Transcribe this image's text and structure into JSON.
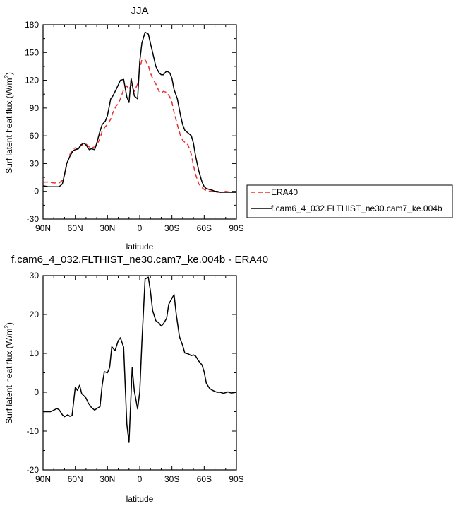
{
  "chart_data": [
    {
      "type": "line",
      "title": "JJA",
      "xlabel": "latitude",
      "ylabel": "Surf latent heat flux (W/m",
      "ylabel_sup": "2",
      "ylabel_close": ")",
      "xlim": [
        90,
        -90
      ],
      "ylim": [
        -30,
        180
      ],
      "x_ticks": [
        90,
        60,
        30,
        0,
        -30,
        -60,
        -90
      ],
      "x_tick_labels": [
        "90N",
        "60N",
        "30N",
        "0",
        "30S",
        "60S",
        "90S"
      ],
      "y_ticks": [
        -30,
        0,
        30,
        60,
        90,
        120,
        150,
        180
      ],
      "y_tick_labels": [
        "-30",
        "0",
        "30",
        "60",
        "90",
        "120",
        "150",
        "180"
      ],
      "legend": "outside-right",
      "series": [
        {
          "name": "ERA40",
          "style": "dashed",
          "color": "#e8302a",
          "x": [
            90,
            85,
            80,
            75,
            72,
            70,
            68,
            65,
            62,
            60,
            57,
            55,
            52,
            50,
            47,
            45,
            42,
            40,
            37,
            35,
            32,
            30,
            27,
            25,
            22,
            20,
            18,
            15,
            12,
            10,
            8,
            5,
            2,
            0,
            -2,
            -5,
            -8,
            -10,
            -12,
            -15,
            -18,
            -20,
            -22,
            -25,
            -28,
            -30,
            -32,
            -35,
            -38,
            -40,
            -42,
            -45,
            -48,
            -50,
            -52,
            -55,
            -58,
            -60,
            -62,
            -65,
            -68,
            -70,
            -72,
            -75,
            -78,
            -80,
            -85,
            -90
          ],
          "y": [
            10,
            10,
            9,
            9,
            12,
            18,
            28,
            40,
            46,
            47,
            45,
            49,
            51,
            51,
            48,
            47,
            48,
            50,
            57,
            65,
            70,
            72,
            78,
            85,
            92,
            95,
            100,
            110,
            114,
            110,
            115,
            108,
            116,
            132,
            142,
            142,
            136,
            128,
            122,
            116,
            108,
            106,
            108,
            107,
            102,
            96,
            85,
            72,
            60,
            55,
            53,
            50,
            40,
            28,
            18,
            8,
            4,
            2,
            1,
            0,
            0,
            -1,
            -1,
            -1,
            -1,
            0,
            -1,
            -1
          ]
        },
        {
          "name": "f.cam6_4_032.FLTHIST_ne30.cam7_ke.004b",
          "style": "solid",
          "color": "#000000",
          "x": [
            90,
            85,
            80,
            75,
            72,
            70,
            68,
            65,
            62,
            60,
            57,
            55,
            52,
            50,
            47,
            45,
            42,
            40,
            37,
            35,
            32,
            30,
            27,
            25,
            22,
            20,
            18,
            15,
            12,
            10,
            8,
            5,
            2,
            0,
            -2,
            -5,
            -8,
            -10,
            -12,
            -15,
            -18,
            -20,
            -22,
            -25,
            -28,
            -30,
            -32,
            -35,
            -38,
            -40,
            -42,
            -45,
            -48,
            -50,
            -52,
            -55,
            -58,
            -60,
            -62,
            -65,
            -68,
            -70,
            -72,
            -75,
            -78,
            -80,
            -85,
            -90
          ],
          "y": [
            6,
            5,
            5,
            5,
            8,
            18,
            30,
            38,
            44,
            45,
            46,
            50,
            52,
            50,
            45,
            46,
            45,
            52,
            65,
            72,
            76,
            82,
            100,
            103,
            110,
            115,
            120,
            121,
            102,
            96,
            122,
            103,
            100,
            140,
            160,
            172,
            170,
            160,
            150,
            135,
            128,
            126,
            126,
            130,
            128,
            122,
            110,
            100,
            82,
            72,
            66,
            63,
            60,
            52,
            38,
            22,
            10,
            5,
            3,
            2,
            1,
            0,
            0,
            -1,
            -1,
            -1,
            -1,
            -1
          ]
        }
      ]
    },
    {
      "type": "line",
      "title": "f.cam6_4_032.FLTHIST_ne30.cam7_ke.004b - ERA40",
      "xlabel": "latitude",
      "ylabel": "Surf latent heat flux (W/m",
      "ylabel_sup": "2",
      "ylabel_close": ")",
      "xlim": [
        90,
        -90
      ],
      "ylim": [
        -20,
        30
      ],
      "x_ticks": [
        90,
        60,
        30,
        0,
        -30,
        -60,
        -90
      ],
      "x_tick_labels": [
        "90N",
        "60N",
        "30N",
        "0",
        "30S",
        "60S",
        "90S"
      ],
      "y_ticks": [
        -20,
        -10,
        0,
        10,
        20,
        30
      ],
      "y_tick_labels": [
        "-20",
        "-10",
        "0",
        "10",
        "20",
        "30"
      ],
      "series": [
        {
          "style": "solid",
          "color": "#000000",
          "x": [
            90,
            85,
            83,
            80,
            77,
            75,
            72,
            70,
            67,
            65,
            63,
            60,
            58,
            56,
            54,
            52,
            50,
            48,
            45,
            42,
            40,
            37,
            35,
            33,
            30,
            28,
            26,
            23,
            20,
            18,
            15,
            12,
            10,
            7,
            5,
            2,
            0,
            -2,
            -5,
            -8,
            -10,
            -12,
            -15,
            -18,
            -20,
            -22,
            -25,
            -27,
            -30,
            -32,
            -34,
            -37,
            -40,
            -42,
            -45,
            -48,
            -50,
            -52,
            -55,
            -58,
            -60,
            -62,
            -65,
            -67,
            -70,
            -72,
            -75,
            -78,
            -80,
            -82,
            -85,
            -88,
            -90
          ],
          "y": [
            -5,
            -5,
            -5,
            -4.6,
            -4.2,
            -4.5,
            -5.8,
            -6.3,
            -5.8,
            -6.2,
            -6,
            1.3,
            0.5,
            1.8,
            -0.4,
            -0.9,
            -1.5,
            -2.7,
            -3.9,
            -4.6,
            -4.2,
            -3.7,
            1.7,
            5.3,
            5.0,
            6.4,
            11.7,
            10.7,
            13.3,
            14.0,
            11.6,
            -8.2,
            -12.9,
            6.3,
            0.3,
            -4.3,
            0.0,
            12.6,
            29.1,
            29.6,
            26.0,
            21.0,
            18.4,
            17.8,
            17.0,
            17.6,
            19.0,
            22.6,
            24.2,
            25.1,
            20.0,
            14.3,
            12.0,
            10.1,
            9.9,
            9.4,
            9.6,
            9.3,
            8.0,
            7.0,
            5.2,
            2.3,
            1.0,
            0.6,
            0.2,
            0.0,
            0.0,
            -0.3,
            -0.1,
            0.1,
            -0.2,
            -0.1,
            0.0
          ]
        }
      ]
    }
  ]
}
